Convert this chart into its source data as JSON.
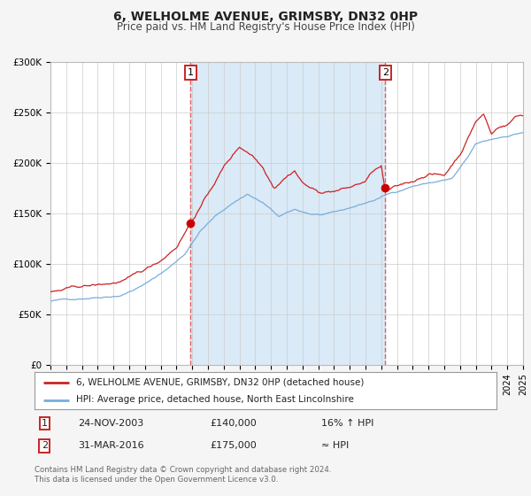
{
  "title": "6, WELHOLME AVENUE, GRIMSBY, DN32 0HP",
  "subtitle": "Price paid vs. HM Land Registry's House Price Index (HPI)",
  "x_start_year": 1995,
  "x_end_year": 2025,
  "y_min": 0,
  "y_max": 300000,
  "y_ticks": [
    0,
    50000,
    100000,
    150000,
    200000,
    250000,
    300000
  ],
  "y_tick_labels": [
    "£0",
    "£50K",
    "£100K",
    "£150K",
    "£200K",
    "£250K",
    "£300K"
  ],
  "hpi_color": "#7aaddb",
  "price_color": "#cc2222",
  "dot_color": "#cc0000",
  "bg_color": "#f5f5f5",
  "plot_bg_color": "#ffffff",
  "shaded_region_color": "#daeaf7",
  "vline_color": "#e06060",
  "sale1_year": 2003.9,
  "sale1_price": 140000,
  "sale2_year": 2016.25,
  "sale2_price": 175000,
  "legend_line1": "6, WELHOLME AVENUE, GRIMSBY, DN32 0HP (detached house)",
  "legend_line2": "HPI: Average price, detached house, North East Lincolnshire",
  "table_row1_date": "24-NOV-2003",
  "table_row1_price": "£140,000",
  "table_row1_hpi": "16% ↑ HPI",
  "table_row2_date": "31-MAR-2016",
  "table_row2_price": "£175,000",
  "table_row2_hpi": "≈ HPI",
  "footer_text": "Contains HM Land Registry data © Crown copyright and database right 2024.\nThis data is licensed under the Open Government Licence v3.0.",
  "grid_color": "#cccccc",
  "title_fontsize": 10,
  "subtitle_fontsize": 8.5
}
